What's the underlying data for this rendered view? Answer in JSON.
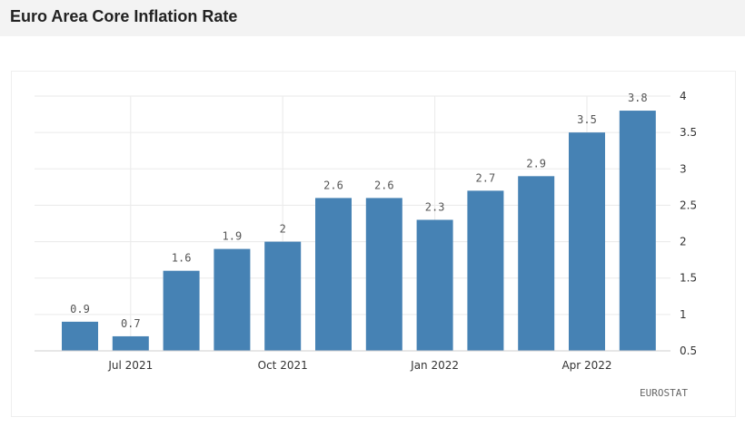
{
  "header": {
    "title": "Euro Area Core Inflation Rate"
  },
  "chart_data": {
    "type": "bar",
    "title": "Euro Area Core Inflation Rate",
    "categories": [
      "Jun 2021",
      "Jul 2021",
      "Aug 2021",
      "Sep 2021",
      "Oct 2021",
      "Nov 2021",
      "Dec 2021",
      "Jan 2022",
      "Feb 2022",
      "Mar 2022",
      "Apr 2022",
      "May 2022"
    ],
    "values": [
      0.9,
      0.7,
      1.6,
      1.9,
      2,
      2.6,
      2.6,
      2.3,
      2.7,
      2.9,
      3.5,
      3.8
    ],
    "value_labels": [
      "0.9",
      "0.7",
      "1.6",
      "1.9",
      "2",
      "2.6",
      "2.6",
      "2.3",
      "2.7",
      "2.9",
      "3.5",
      "3.8"
    ],
    "x_ticks": [
      "Jul 2021",
      "Oct 2021",
      "Jan 2022",
      "Apr 2022"
    ],
    "y_ticks": [
      "0.5",
      "1",
      "1.5",
      "2",
      "2.5",
      "3",
      "3.5",
      "4"
    ],
    "ylim": [
      0.5,
      4
    ],
    "y_axis_side": "right",
    "grid": true,
    "bar_color": "#4682b4",
    "source": "EUROSTAT"
  }
}
